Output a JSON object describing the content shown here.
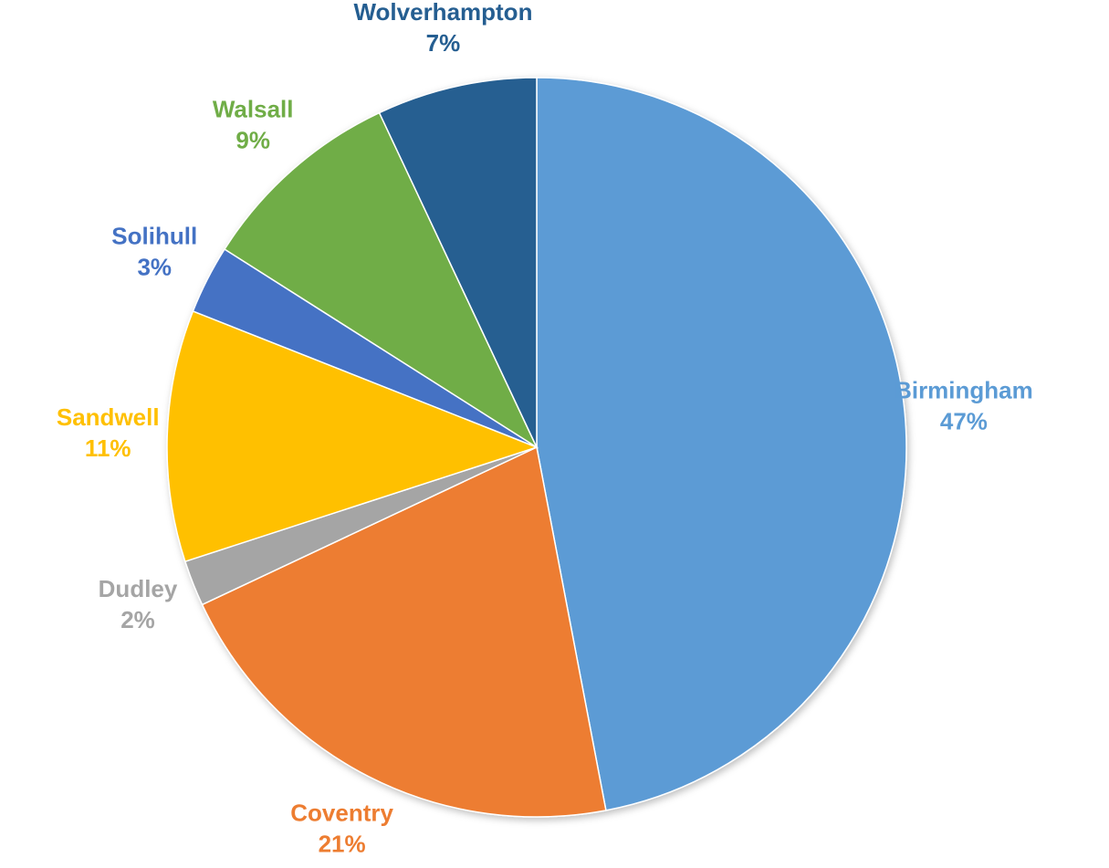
{
  "chart_data": {
    "type": "pie",
    "categories": [
      "Birmingham",
      "Coventry",
      "Dudley",
      "Sandwell",
      "Solihull",
      "Walsall",
      "Wolverhampton"
    ],
    "values": [
      47,
      21,
      2,
      11,
      3,
      9,
      7
    ],
    "value_labels": [
      "47%",
      "21%",
      "2%",
      "11%",
      "3%",
      "9%",
      "7%"
    ],
    "colors": [
      "#5b9bd5",
      "#ed7d31",
      "#a5a5a5",
      "#ffc000",
      "#4472c4",
      "#70ad47",
      "#255e91"
    ]
  }
}
